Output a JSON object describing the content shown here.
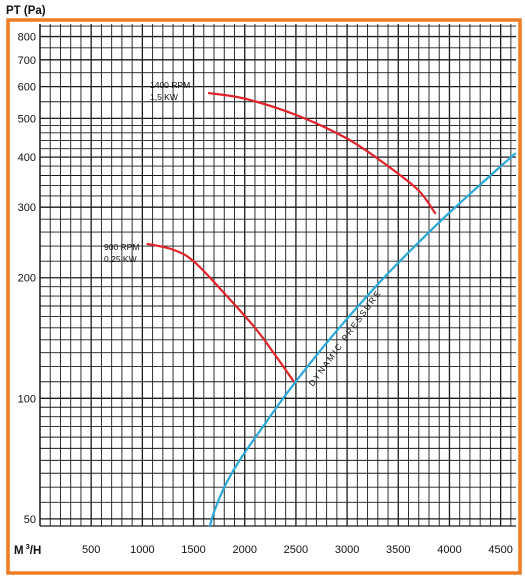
{
  "chart_data": {
    "type": "line",
    "y_axis_title": "PT (Pa)",
    "x_axis_label": "M³/H",
    "x_unit_main": "M",
    "x_unit_sup": "3",
    "x_unit_tail": "/H",
    "x_scale": "linear",
    "y_scale": "log",
    "xlim": [
      0,
      4650
    ],
    "ylim": [
      48,
      860
    ],
    "grid": true,
    "x_ticks": [
      "500",
      "1000",
      "1500",
      "2000",
      "2500",
      "3000",
      "3500",
      "4000",
      "4500"
    ],
    "y_ticks": [
      "50",
      "100",
      "200",
      "300",
      "400",
      "500",
      "600",
      "700",
      "800"
    ],
    "colors": {
      "fan_curve": "#e0242b",
      "dynamic_curve": "#2aa9d9",
      "frame": "#ee7c22"
    },
    "annotations": {
      "rpm1400": "1400 RPM",
      "kw1400": "1,5  KW",
      "rpm900": "900 RPM",
      "kw900": "0,25  KW",
      "dynamic": "DYNAMIC PRESSURE"
    },
    "series": [
      {
        "key": "fan1400",
        "color": "#e0242b",
        "x": [
          1650,
          2000,
          2500,
          3000,
          3400,
          3700,
          3860
        ],
        "y": [
          578,
          560,
          510,
          445,
          380,
          330,
          290
        ]
      },
      {
        "key": "fan900",
        "color": "#e0242b",
        "x": [
          1050,
          1300,
          1500,
          1800,
          2100,
          2300,
          2480
        ],
        "y": [
          243,
          235,
          220,
          183,
          150,
          128,
          110
        ]
      },
      {
        "key": "dynamic",
        "color": "#2aa9d9",
        "x": [
          1660,
          1700,
          1800,
          1950,
          2150,
          2400,
          2700,
          3000,
          3400,
          3900,
          4400,
          4640
        ],
        "y": [
          48,
          52,
          60,
          70,
          83,
          102,
          128,
          158,
          205,
          275,
          360,
          408
        ]
      }
    ]
  }
}
